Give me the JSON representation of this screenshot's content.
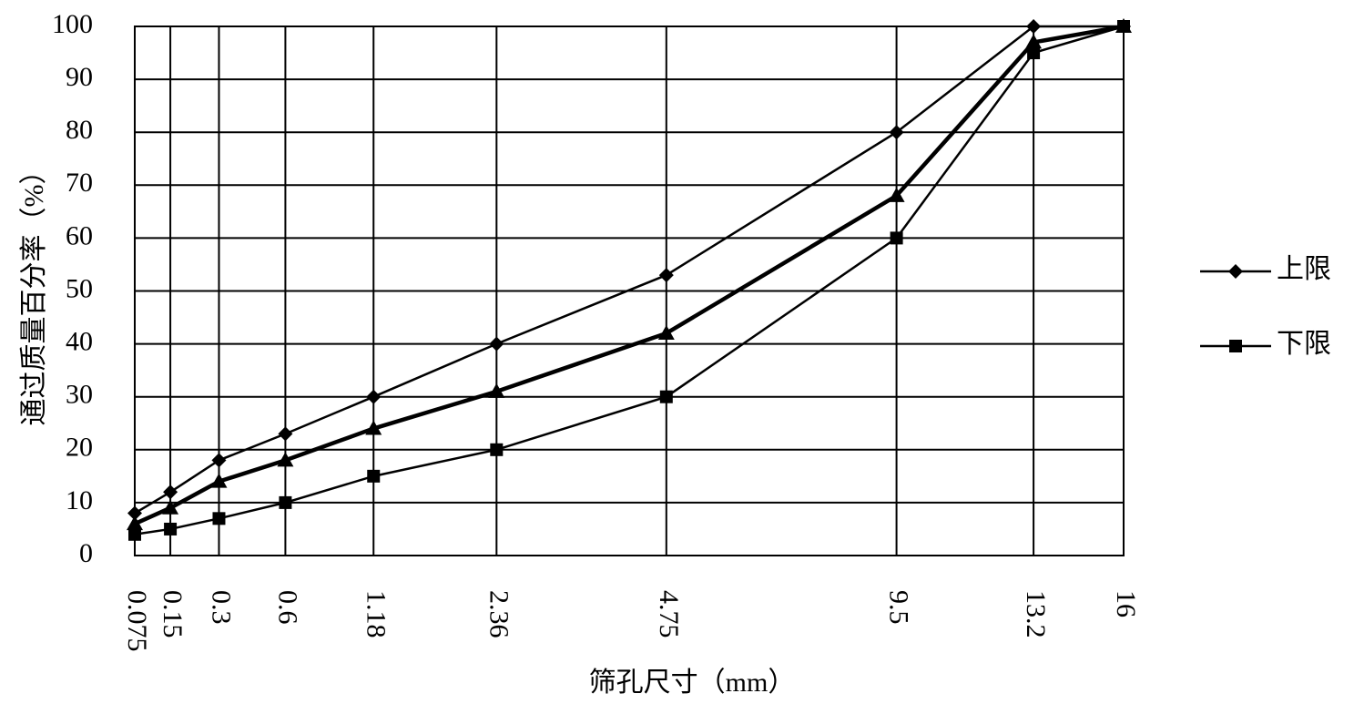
{
  "chart_data": {
    "type": "line",
    "xlabel": "筛孔尺寸（mm）",
    "ylabel": "通过质量百分率（%）",
    "x": [
      0.075,
      0.15,
      0.3,
      0.6,
      1.18,
      2.36,
      4.75,
      9.5,
      13.2,
      16
    ],
    "xscale": "power",
    "xpower": 0.45,
    "xlim": [
      0.075,
      16
    ],
    "xticks": [
      0.075,
      0.15,
      0.3,
      0.6,
      1.18,
      2.36,
      4.75,
      9.5,
      13.2,
      16
    ],
    "ylim": [
      0,
      100
    ],
    "yticks": [
      0,
      10,
      20,
      30,
      40,
      50,
      60,
      70,
      80,
      90,
      100
    ],
    "grid": true,
    "legend": "right",
    "series": [
      {
        "name": "上限",
        "color": "#000000",
        "marker": "diamond",
        "width": 2.5,
        "values": [
          8,
          12,
          18,
          23,
          30,
          40,
          53,
          80,
          100,
          100
        ]
      },
      {
        "name": "下限",
        "color": "#000000",
        "marker": "square",
        "width": 2.5,
        "values": [
          4,
          5,
          7,
          10,
          15,
          20,
          30,
          60,
          95,
          100
        ]
      },
      {
        "color": "#000000",
        "marker": "triangle",
        "width": 4.5,
        "values": [
          6,
          9,
          14,
          18,
          24,
          31,
          42,
          68,
          97,
          100
        ]
      }
    ]
  }
}
